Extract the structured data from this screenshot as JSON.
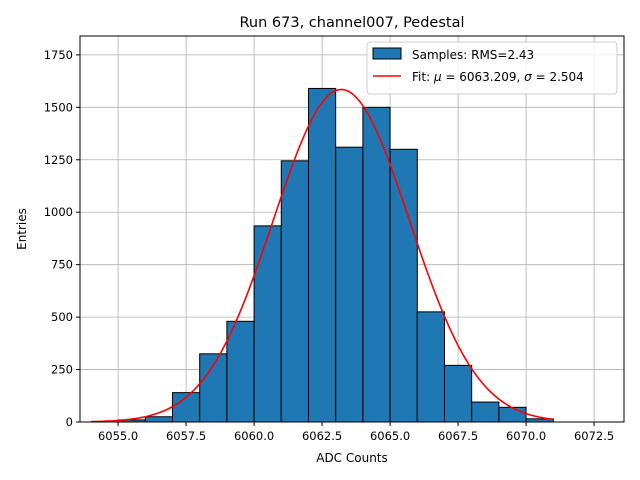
{
  "chart_data": {
    "type": "bar",
    "title": "Run 673, channel007, Pedestal",
    "xlabel": "ADC Counts",
    "ylabel": "Entries",
    "xlim": [
      6053.6,
      6073.6
    ],
    "ylim": [
      0,
      1840
    ],
    "xticks": [
      6055.0,
      6057.5,
      6060.0,
      6062.5,
      6065.0,
      6067.5,
      6070.0,
      6072.5
    ],
    "xtick_labels": [
      "6055.0",
      "6057.5",
      "6060.0",
      "6062.5",
      "6065.0",
      "6067.5",
      "6070.0",
      "6072.5"
    ],
    "yticks": [
      0,
      250,
      500,
      750,
      1000,
      1250,
      1500,
      1750
    ],
    "ytick_labels": [
      "0",
      "250",
      "500",
      "750",
      "1000",
      "1250",
      "1500",
      "1750"
    ],
    "grid": true,
    "legend_position": "top-right",
    "histogram": {
      "name": "Samples: RMS=2.43",
      "color": "#1f77b4",
      "edge_color": "#000000",
      "bin_edges": [
        6054,
        6055,
        6056,
        6057,
        6058,
        6059,
        6060,
        6061,
        6062,
        6063,
        6064,
        6065,
        6066,
        6067,
        6068,
        6069,
        6070,
        6071
      ],
      "counts": [
        0,
        10,
        25,
        140,
        325,
        480,
        935,
        1245,
        1590,
        1310,
        1500,
        1300,
        525,
        270,
        95,
        70,
        15
      ]
    },
    "fit": {
      "name": "Fit: μ = 6063.209, σ = 2.504",
      "legend_prefix": "Fit: ",
      "mu_symbol": "μ",
      "mu_text": " = 6063.209, ",
      "sigma_symbol": "σ",
      "sigma_text": " = 2.504",
      "color": "#ff0000",
      "type": "gaussian",
      "mu": 6063.209,
      "sigma": 2.504,
      "amplitude": 1585,
      "x_range": [
        6054,
        6071
      ]
    }
  }
}
